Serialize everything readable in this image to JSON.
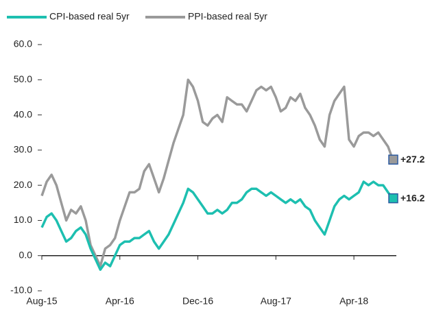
{
  "chart_data": {
    "type": "line",
    "x": [
      0,
      0.5,
      1,
      1.5,
      2,
      2.5,
      3,
      3.5,
      4,
      4.5,
      5,
      5.5,
      6,
      6.5,
      7,
      7.5,
      8,
      8.5,
      9,
      9.5,
      10,
      10.5,
      11,
      11.5,
      12,
      12.5,
      13,
      13.5,
      14,
      14.5,
      15,
      15.5,
      16,
      16.5,
      17,
      17.5,
      18,
      18.5,
      19,
      19.5,
      20,
      20.5,
      21,
      21.5,
      22,
      22.5,
      23,
      23.5,
      24,
      24.5,
      25,
      25.5,
      26,
      26.5,
      27,
      27.5,
      28,
      28.5,
      29,
      29.5,
      30,
      30.5,
      31,
      31.5,
      32,
      32.5,
      33,
      33.5,
      34,
      34.5,
      35,
      35.5,
      36
    ],
    "series": [
      {
        "name": "CPI-based real 5yr",
        "color": "#1dbfb0",
        "end_label": "+16.2",
        "values": [
          8,
          11,
          12,
          10,
          7,
          4,
          5,
          7,
          8,
          6,
          2,
          -1,
          -4,
          -2,
          -3,
          0,
          3,
          4,
          4,
          5,
          5,
          6,
          7,
          4,
          2,
          4,
          6,
          9,
          12,
          15,
          19,
          18,
          16,
          14,
          12,
          12,
          13,
          12,
          13,
          15,
          15,
          16,
          18,
          19,
          19,
          18,
          17,
          18,
          17,
          16,
          15,
          16,
          15,
          16,
          14,
          13,
          10,
          8,
          6,
          10,
          14,
          16,
          17,
          16,
          17,
          18,
          21,
          20,
          21,
          20,
          20,
          18,
          16.2
        ]
      },
      {
        "name": "PPI-based real 5yr",
        "color": "#9a9a9a",
        "end_label": "+27.2",
        "values": [
          17,
          21,
          23,
          20,
          15,
          10,
          13,
          12,
          14,
          10,
          3,
          0,
          -3,
          2,
          3,
          5,
          10,
          14,
          18,
          18,
          19,
          24,
          26,
          22,
          18,
          22,
          27,
          32,
          36,
          40,
          50,
          48,
          44,
          38,
          37,
          39,
          40,
          38,
          45,
          44,
          43,
          43,
          41,
          44,
          47,
          48,
          47,
          48,
          45,
          41,
          42,
          45,
          44,
          46,
          42,
          40,
          37,
          33,
          31,
          40,
          44,
          46,
          48,
          33,
          31,
          34,
          35,
          35,
          34,
          35,
          33,
          31,
          27.2
        ]
      }
    ],
    "xlim": [
      0,
      36
    ],
    "xticks": [
      {
        "value": 0,
        "label": "Aug-15"
      },
      {
        "value": 8,
        "label": "Apr-16"
      },
      {
        "value": 16,
        "label": "Dec-16"
      },
      {
        "value": 24,
        "label": "Aug-17"
      },
      {
        "value": 32,
        "label": "Apr-18"
      }
    ],
    "ylim": [
      -10,
      60
    ],
    "yticks": [
      {
        "value": -10,
        "label": "-10.0"
      },
      {
        "value": 0,
        "label": "0.0"
      },
      {
        "value": 10,
        "label": "10.0"
      },
      {
        "value": 20,
        "label": "20.0"
      },
      {
        "value": 30,
        "label": "30.0"
      },
      {
        "value": 40,
        "label": "40.0"
      },
      {
        "value": 50,
        "label": "50.0"
      },
      {
        "value": 60,
        "label": "60.0"
      }
    ]
  }
}
